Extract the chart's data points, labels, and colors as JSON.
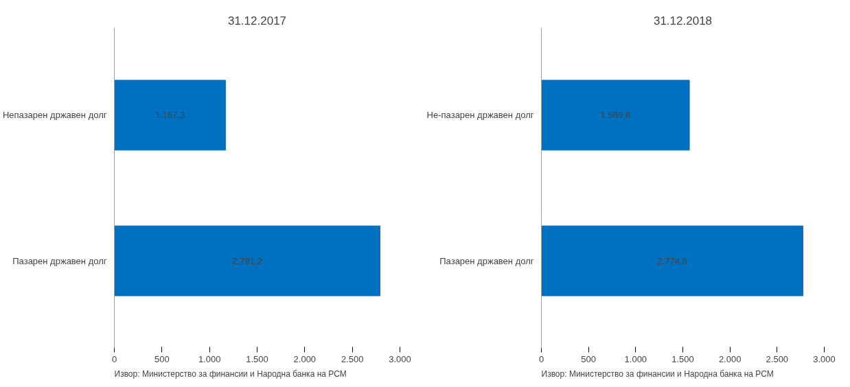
{
  "chart_data": [
    {
      "type": "bar",
      "orientation": "horizontal",
      "title": "31.12.2017",
      "categories": [
        "Непазарен државен долг",
        "Пазарен државен долг"
      ],
      "values": [
        1167.3,
        2791.2
      ],
      "color": "#0070c0",
      "value_labels": [
        "1.167,3",
        "2.791,2"
      ],
      "xlim": [
        0,
        3000
      ],
      "xticks": [
        0,
        500,
        {
          "value": 1000,
          "label": "1.000"
        },
        {
          "value": 1500,
          "label": "1.500"
        },
        {
          "value": 2000,
          "label": "2.000"
        },
        {
          "value": 2500,
          "label": "2.500"
        },
        {
          "value": 3000,
          "label": "3.000"
        }
      ],
      "grid": false,
      "annotations": [
        "Извор: Министерство за финансии и Народна банка на РСМ"
      ]
    },
    {
      "type": "bar",
      "orientation": "horizontal",
      "title": "31.12.2018",
      "categories": [
        "Не-пазарен државен долг",
        "Пазарен државен долг"
      ],
      "values": [
        1569.8,
        2774.6
      ],
      "color": "#0070c0",
      "value_labels": [
        "1.569,8",
        "2.774,6"
      ],
      "xlim": [
        0,
        3000
      ],
      "xticks": [
        0,
        500,
        {
          "value": 1000,
          "label": "1.000"
        },
        {
          "value": 1500,
          "label": "1.500"
        },
        {
          "value": 2000,
          "label": "2.000"
        },
        {
          "value": 2500,
          "label": "2.500"
        },
        {
          "value": 3000,
          "label": "3.000"
        }
      ],
      "grid": false,
      "annotations": [
        "Извор: Министерство за финансии и Народна банка на РСМ"
      ]
    }
  ]
}
